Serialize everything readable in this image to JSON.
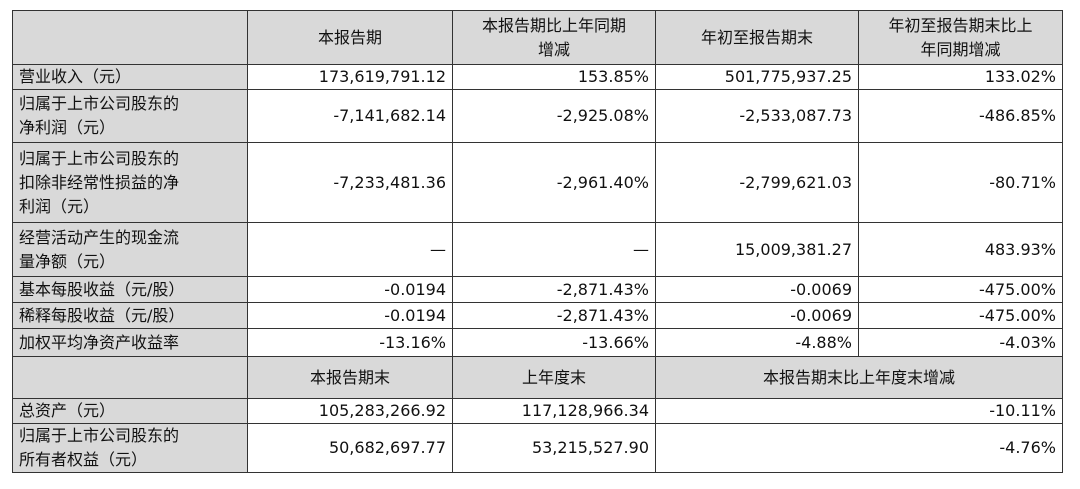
{
  "table": {
    "header": [
      "本报告期",
      [
        "本报告期比上年同期",
        "增减"
      ],
      "年初至报告期末",
      [
        "年初至报告期末比上",
        "年同期增减"
      ]
    ],
    "rows": [
      [
        "营业收入（元）",
        "173,619,791.12",
        "153.85%",
        "501,775,937.25",
        "133.02%"
      ],
      [
        [
          "归属于上市公司股东的",
          "净利润（元）"
        ],
        "-7,141,682.14",
        "-2,925.08%",
        "-2,533,087.73",
        "-486.85%"
      ],
      [
        [
          "归属于上市公司股东的",
          "扣除非经常性损益的净",
          "利润（元）"
        ],
        "-7,233,481.36",
        "-2,961.40%",
        "-2,799,621.03",
        "-80.71%"
      ],
      [
        [
          "经营活动产生的现金流",
          "量净额（元）"
        ],
        "—",
        "—",
        "15,009,381.27",
        "483.93%"
      ],
      [
        "基本每股收益（元/股）",
        "-0.0194",
        "-2,871.43%",
        "-0.0069",
        "-475.00%"
      ],
      [
        "稀释每股收益（元/股）",
        "-0.0194",
        "-2,871.43%",
        "-0.0069",
        "-475.00%"
      ],
      [
        "加权平均净资产收益率",
        "-13.16%",
        "-13.66%",
        "-4.88%",
        "-4.03%"
      ]
    ],
    "header2": [
      "本报告期末",
      "上年度末",
      "本报告期末比上年度末增减"
    ],
    "rows2": [
      [
        "总资产（元）",
        "105,283,266.92",
        "117,128,966.34",
        "-10.11%"
      ],
      [
        [
          "归属于上市公司股东的",
          "所有者权益（元）"
        ],
        "50,682,697.77",
        "53,215,527.90",
        "-4.76%"
      ]
    ]
  }
}
